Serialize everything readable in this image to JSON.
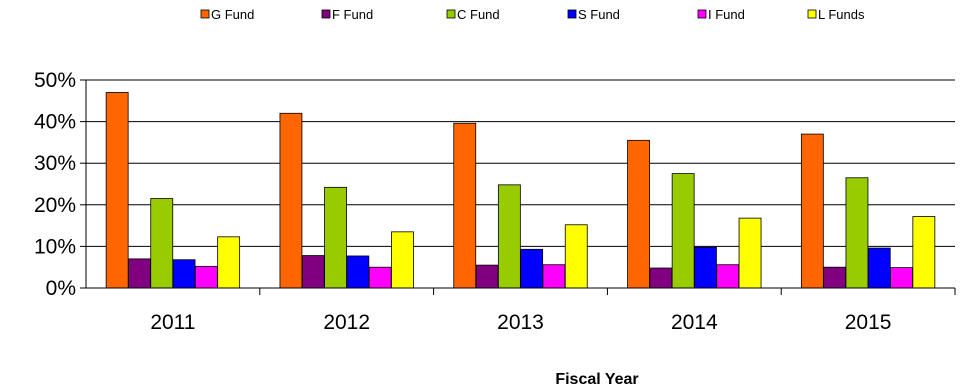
{
  "chart_data": {
    "type": "bar",
    "title": "",
    "xlabel": "Fiscal Year",
    "ylabel": "",
    "categories": [
      "2011",
      "2012",
      "2013",
      "2014",
      "2015"
    ],
    "ylim": [
      0,
      50
    ],
    "yticks": [
      "0%",
      "10%",
      "20%",
      "30%",
      "40%",
      "50%"
    ],
    "grid": true,
    "legend_position": "top",
    "series": [
      {
        "name": "G Fund",
        "color": "#FF6600",
        "values": [
          47,
          42,
          39.6,
          35.5,
          37
        ]
      },
      {
        "name": "F Fund",
        "color": "#800080",
        "values": [
          7,
          7.8,
          5.5,
          4.8,
          5
        ]
      },
      {
        "name": "C Fund",
        "color": "#99CC00",
        "values": [
          21.5,
          24.2,
          24.8,
          27.5,
          26.5
        ]
      },
      {
        "name": "S Fund",
        "color": "#0000FF",
        "values": [
          6.8,
          7.7,
          9.3,
          9.8,
          9.6
        ]
      },
      {
        "name": "I Fund",
        "color": "#FF00FF",
        "values": [
          5.2,
          5,
          5.6,
          5.6,
          4.9
        ]
      },
      {
        "name": "L Funds",
        "color": "#FFFF00",
        "values": [
          12.3,
          13.5,
          15.2,
          16.8,
          17.2
        ]
      }
    ]
  }
}
